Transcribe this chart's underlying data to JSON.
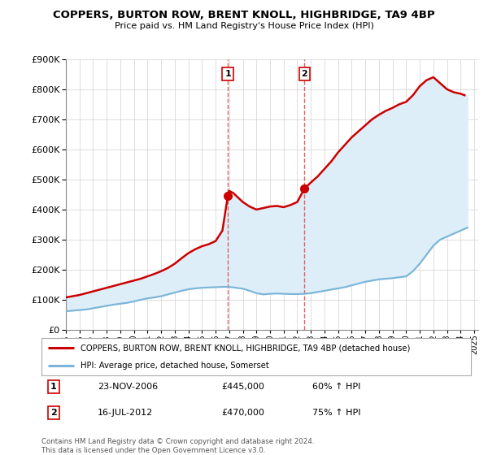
{
  "title": "COPPERS, BURTON ROW, BRENT KNOLL, HIGHBRIDGE, TA9 4BP",
  "subtitle": "Price paid vs. HM Land Registry's House Price Index (HPI)",
  "legend_line1": "COPPERS, BURTON ROW, BRENT KNOLL, HIGHBRIDGE, TA9 4BP (detached house)",
  "legend_line2": "HPI: Average price, detached house, Somerset",
  "footnote": "Contains HM Land Registry data © Crown copyright and database right 2024.\nThis data is licensed under the Open Government Licence v3.0.",
  "sale1_label": "1",
  "sale1_date": "23-NOV-2006",
  "sale1_price": "£445,000",
  "sale1_hpi": "60% ↑ HPI",
  "sale2_label": "2",
  "sale2_date": "16-JUL-2012",
  "sale2_price": "£470,000",
  "sale2_hpi": "75% ↑ HPI",
  "sale1_year": 2006.9,
  "sale1_value": 445000,
  "sale2_year": 2012.54,
  "sale2_value": 470000,
  "hpi_color": "#7ab4d8",
  "price_color": "#cc0000",
  "shade_color": "#ddeef8",
  "ylim": [
    0,
    900000
  ],
  "xlim_start": 1995.0,
  "xlim_end": 2025.3,
  "hpi_years": [
    1995.0,
    1995.5,
    1996.0,
    1996.5,
    1997.0,
    1997.5,
    1998.0,
    1998.5,
    1999.0,
    1999.5,
    2000.0,
    2000.5,
    2001.0,
    2001.5,
    2002.0,
    2002.5,
    2003.0,
    2003.5,
    2004.0,
    2004.5,
    2005.0,
    2005.5,
    2006.0,
    2006.5,
    2007.0,
    2007.5,
    2008.0,
    2008.5,
    2009.0,
    2009.5,
    2010.0,
    2010.5,
    2011.0,
    2011.5,
    2012.0,
    2012.5,
    2013.0,
    2013.5,
    2014.0,
    2014.5,
    2015.0,
    2015.5,
    2016.0,
    2016.5,
    2017.0,
    2017.5,
    2018.0,
    2018.5,
    2019.0,
    2019.5,
    2020.0,
    2020.5,
    2021.0,
    2021.5,
    2022.0,
    2022.5,
    2023.0,
    2023.5,
    2024.0,
    2024.5
  ],
  "hpi_values": [
    62000,
    64000,
    66000,
    68000,
    72000,
    76000,
    80000,
    84000,
    87000,
    90000,
    95000,
    100000,
    105000,
    108000,
    112000,
    118000,
    124000,
    130000,
    135000,
    138000,
    140000,
    141000,
    142000,
    143000,
    143000,
    140000,
    137000,
    130000,
    122000,
    118000,
    120000,
    121000,
    120000,
    119000,
    119000,
    120000,
    122000,
    126000,
    130000,
    134000,
    138000,
    142000,
    148000,
    154000,
    160000,
    164000,
    168000,
    170000,
    172000,
    175000,
    178000,
    195000,
    220000,
    250000,
    280000,
    300000,
    310000,
    320000,
    330000,
    340000
  ],
  "price_years": [
    1995.0,
    1995.5,
    1996.0,
    1996.5,
    1997.0,
    1997.5,
    1998.0,
    1998.5,
    1999.0,
    1999.5,
    2000.0,
    2000.5,
    2001.0,
    2001.5,
    2002.0,
    2002.5,
    2003.0,
    2003.5,
    2004.0,
    2004.5,
    2005.0,
    2005.5,
    2006.0,
    2006.5,
    2006.9,
    2007.0,
    2007.3,
    2008.0,
    2008.5,
    2009.0,
    2009.5,
    2010.0,
    2010.5,
    2011.0,
    2011.5,
    2012.0,
    2012.54,
    2013.0,
    2013.5,
    2014.0,
    2014.5,
    2015.0,
    2015.5,
    2016.0,
    2016.5,
    2017.0,
    2017.5,
    2018.0,
    2018.5,
    2019.0,
    2019.5,
    2020.0,
    2020.5,
    2021.0,
    2021.5,
    2022.0,
    2022.5,
    2023.0,
    2023.5,
    2024.0,
    2024.3
  ],
  "price_values": [
    108000,
    112000,
    116000,
    122000,
    128000,
    134000,
    140000,
    146000,
    152000,
    158000,
    164000,
    170000,
    178000,
    186000,
    195000,
    206000,
    220000,
    238000,
    255000,
    268000,
    278000,
    285000,
    295000,
    330000,
    445000,
    462000,
    455000,
    425000,
    410000,
    400000,
    405000,
    410000,
    412000,
    408000,
    415000,
    425000,
    470000,
    490000,
    510000,
    535000,
    560000,
    590000,
    615000,
    640000,
    660000,
    680000,
    700000,
    715000,
    728000,
    738000,
    750000,
    758000,
    780000,
    810000,
    830000,
    840000,
    820000,
    800000,
    790000,
    785000,
    780000
  ]
}
